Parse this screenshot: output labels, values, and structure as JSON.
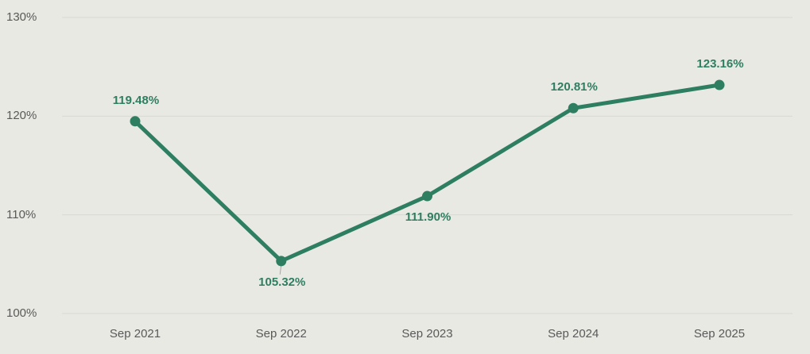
{
  "chart_data": {
    "type": "line",
    "title": "",
    "xlabel": "",
    "ylabel": "",
    "categories": [
      "Sep 2021",
      "Sep 2022",
      "Sep 2023",
      "Sep 2024",
      "Sep 2025"
    ],
    "values": [
      119.48,
      105.32,
      111.9,
      120.81,
      123.16
    ],
    "point_labels": [
      "119.48%",
      "105.32%",
      "111.90%",
      "120.81%",
      "123.16%"
    ],
    "label_positions": [
      "above",
      "below",
      "below",
      "above",
      "above"
    ],
    "leader_lines": [
      false,
      true,
      false,
      false,
      false
    ],
    "ylim": [
      100,
      130
    ],
    "yticks": [
      100,
      110,
      120,
      130
    ],
    "ytick_labels": [
      "100%",
      "110%",
      "120%",
      "130%"
    ],
    "grid": "horizontal",
    "legend": "none",
    "colors": {
      "line": "#2e7e62",
      "marker": "#2e7e62",
      "data_label_text": "#2e7e62",
      "axis_text": "#595959",
      "gridline": "#d9d9d3",
      "background": "#e9e9e4",
      "leader_line": "#a6a6a6"
    }
  }
}
